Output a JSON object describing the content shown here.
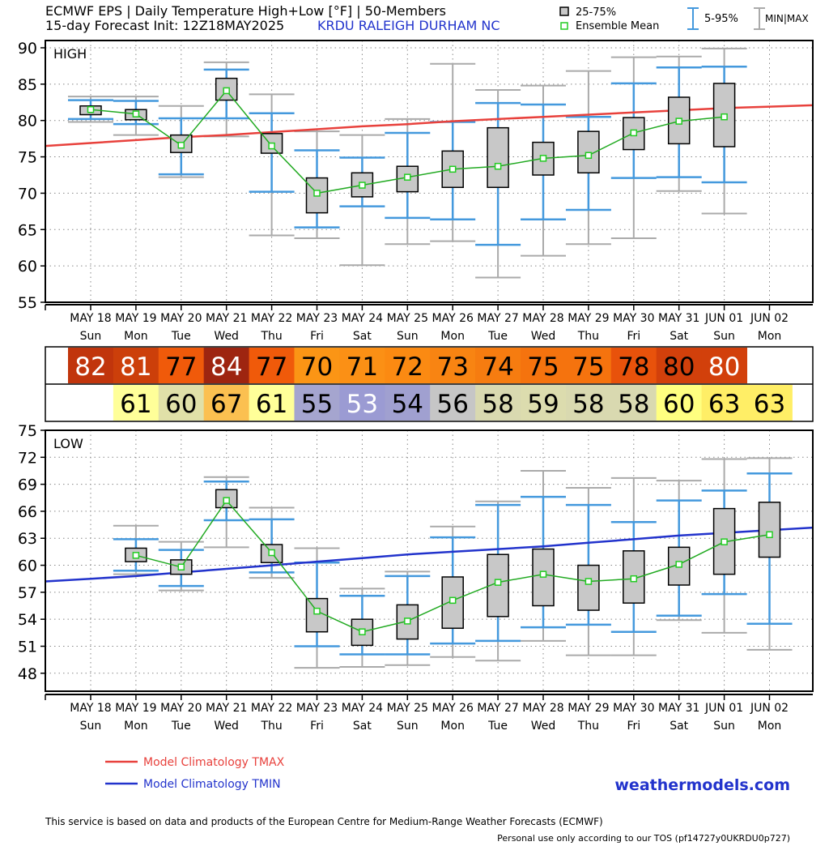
{
  "header": {
    "title_line1": "ECMWF EPS | Daily Temperature High+Low [°F] | 50-Members",
    "title_line2": "15-day Forecast Init: 12Z18MAY2025",
    "station": "KRDU  RALEIGH DURHAM  NC",
    "legend_box": "25-75%",
    "legend_mean": "Ensemble Mean",
    "legend_5_95": "5-95%",
    "legend_minmax": "MIN|MAX"
  },
  "footer": {
    "tmax_label": "Model Climatology TMAX",
    "tmin_label": "Model Climatology TMIN",
    "site": "weathermodels.com",
    "disclaimer": "This service is based on data and products of the European Centre for Medium-Range Weather Forecasts (ECMWF)",
    "tos": "Personal use only according to our TOS (pf14727y0UKRDU0p727)"
  },
  "days": {
    "dates": [
      "MAY 18",
      "MAY 19",
      "MAY 20",
      "MAY 21",
      "MAY 22",
      "MAY 23",
      "MAY 24",
      "MAY 25",
      "MAY 26",
      "MAY 27",
      "MAY 28",
      "MAY 29",
      "MAY 30",
      "MAY 31",
      "JUN 01",
      "JUN 02"
    ],
    "weekdays": [
      "Sun",
      "Mon",
      "Tue",
      "Wed",
      "Thu",
      "Fri",
      "Sat",
      "Sun",
      "Mon",
      "Tue",
      "Wed",
      "Thu",
      "Fri",
      "Sat",
      "Sun",
      "Mon"
    ]
  },
  "colors": {
    "tmax_line": "#e8413c",
    "tmin_line": "#2233cc",
    "mean_line": "#22aa22",
    "whisker_5_95": "#4499dd",
    "whisker_minmax": "#aaaaaa",
    "box_fill": "#c8c8c8",
    "site_text": "#2233cc",
    "station_text": "#2233cc"
  },
  "summary": {
    "highs": [
      {
        "value": "82",
        "bg": "#c1350c",
        "fg": "#ffffff"
      },
      {
        "value": "81",
        "bg": "#cc3f0a",
        "fg": "#ffffff"
      },
      {
        "value": "77",
        "bg": "#f05a0a",
        "fg": "#000000"
      },
      {
        "value": "84",
        "bg": "#9e2510",
        "fg": "#ffffff"
      },
      {
        "value": "77",
        "bg": "#f05a0a",
        "fg": "#000000"
      },
      {
        "value": "70",
        "bg": "#fb9515",
        "fg": "#000000"
      },
      {
        "value": "71",
        "bg": "#fb9015",
        "fg": "#000000"
      },
      {
        "value": "72",
        "bg": "#fb8a12",
        "fg": "#000000"
      },
      {
        "value": "73",
        "bg": "#f88412",
        "fg": "#000000"
      },
      {
        "value": "74",
        "bg": "#f67c10",
        "fg": "#000000"
      },
      {
        "value": "75",
        "bg": "#f5730e",
        "fg": "#000000"
      },
      {
        "value": "75",
        "bg": "#f5730e",
        "fg": "#000000"
      },
      {
        "value": "78",
        "bg": "#e8520b",
        "fg": "#000000"
      },
      {
        "value": "80",
        "bg": "#d2400b",
        "fg": "#000000"
      },
      {
        "value": "80",
        "bg": "#d2400b",
        "fg": "#ffffff"
      }
    ],
    "lows": [
      {
        "value": "61",
        "bg": "#ffff99",
        "fg": "#000000"
      },
      {
        "value": "60",
        "bg": "#e0e0a8",
        "fg": "#000000"
      },
      {
        "value": "67",
        "bg": "#fbc050",
        "fg": "#000000"
      },
      {
        "value": "61",
        "bg": "#ffff99",
        "fg": "#000000"
      },
      {
        "value": "55",
        "bg": "#a5a5cf",
        "fg": "#000000"
      },
      {
        "value": "53",
        "bg": "#9b9bd3",
        "fg": "#ffffff"
      },
      {
        "value": "54",
        "bg": "#a0a0d0",
        "fg": "#000000"
      },
      {
        "value": "56",
        "bg": "#c6c6c6",
        "fg": "#000000"
      },
      {
        "value": "58",
        "bg": "#d9d9b0",
        "fg": "#000000"
      },
      {
        "value": "59",
        "bg": "#dcdcae",
        "fg": "#000000"
      },
      {
        "value": "58",
        "bg": "#d9d9b0",
        "fg": "#000000"
      },
      {
        "value": "58",
        "bg": "#d9d9b0",
        "fg": "#000000"
      },
      {
        "value": "60",
        "bg": "#ffff80",
        "fg": "#000000"
      },
      {
        "value": "63",
        "bg": "#ffee66",
        "fg": "#000000"
      },
      {
        "value": "63",
        "bg": "#ffee66",
        "fg": "#000000"
      }
    ]
  },
  "chart_data": [
    {
      "type": "box",
      "title": "HIGH",
      "ylim": [
        55,
        91
      ],
      "yticks": [
        55,
        60,
        65,
        70,
        75,
        80,
        85,
        90
      ],
      "categories": [
        "MAY 18",
        "MAY 19",
        "MAY 20",
        "MAY 21",
        "MAY 22",
        "MAY 23",
        "MAY 24",
        "MAY 25",
        "MAY 26",
        "MAY 27",
        "MAY 28",
        "MAY 29",
        "MAY 30",
        "MAY 31",
        "JUN 01",
        "JUN 02"
      ],
      "series": [
        {
          "name": "min",
          "values": [
            79.8,
            78.0,
            72.2,
            77.8,
            64.2,
            63.8,
            60.1,
            63.0,
            63.4,
            58.4,
            61.4,
            63.0,
            63.8,
            70.3,
            67.2,
            null
          ]
        },
        {
          "name": "p5",
          "values": [
            80.2,
            79.5,
            72.6,
            80.3,
            70.2,
            65.3,
            68.2,
            66.6,
            66.4,
            62.9,
            66.4,
            67.7,
            72.1,
            72.2,
            71.5,
            null
          ]
        },
        {
          "name": "p25",
          "values": [
            80.8,
            80.1,
            75.6,
            82.8,
            75.5,
            67.3,
            69.5,
            70.2,
            70.8,
            70.8,
            72.5,
            72.8,
            76.0,
            76.8,
            76.4,
            null
          ]
        },
        {
          "name": "p75",
          "values": [
            82.0,
            81.5,
            78.0,
            85.8,
            78.2,
            72.1,
            72.8,
            73.7,
            75.8,
            79.0,
            77.0,
            78.5,
            80.4,
            83.2,
            85.1,
            null
          ]
        },
        {
          "name": "p95",
          "values": [
            82.8,
            82.7,
            80.3,
            87.0,
            81.0,
            75.9,
            74.9,
            78.3,
            79.8,
            82.4,
            82.2,
            80.5,
            85.1,
            87.3,
            87.4,
            null
          ]
        },
        {
          "name": "max",
          "values": [
            83.3,
            83.3,
            82.0,
            88.0,
            83.6,
            78.5,
            78.0,
            80.2,
            87.8,
            84.2,
            84.8,
            86.8,
            88.7,
            88.8,
            89.9,
            null
          ]
        },
        {
          "name": "Ensemble Mean",
          "values": [
            81.5,
            80.9,
            76.6,
            84.1,
            76.5,
            70.0,
            71.1,
            72.2,
            73.3,
            73.7,
            74.8,
            75.2,
            78.3,
            79.9,
            80.5,
            null
          ]
        },
        {
          "name": "Model Climatology TMAX",
          "values": [
            76.9,
            77.3,
            77.7,
            78.0,
            78.4,
            78.8,
            79.2,
            79.5,
            79.9,
            80.2,
            80.5,
            80.8,
            81.1,
            81.4,
            81.7,
            81.9
          ]
        }
      ],
      "legend": [
        "25-75%",
        "Ensemble Mean",
        "5-95%",
        "MIN|MAX",
        "Model Climatology TMAX"
      ]
    },
    {
      "type": "box",
      "title": "LOW",
      "ylim": [
        46,
        75
      ],
      "yticks": [
        48,
        51,
        54,
        57,
        60,
        63,
        66,
        69,
        72,
        75
      ],
      "categories": [
        "MAY 18",
        "MAY 19",
        "MAY 20",
        "MAY 21",
        "MAY 22",
        "MAY 23",
        "MAY 24",
        "MAY 25",
        "MAY 26",
        "MAY 27",
        "MAY 28",
        "MAY 29",
        "MAY 30",
        "MAY 31",
        "JUN 01",
        "JUN 02"
      ],
      "series": [
        {
          "name": "min",
          "values": [
            null,
            59.0,
            57.2,
            62.0,
            58.6,
            48.6,
            48.7,
            48.9,
            49.8,
            49.4,
            51.6,
            50.0,
            50.0,
            53.9,
            52.5,
            50.6
          ]
        },
        {
          "name": "p5",
          "values": [
            null,
            59.4,
            57.7,
            65.0,
            59.2,
            51.0,
            50.1,
            50.1,
            51.3,
            51.6,
            53.1,
            53.4,
            52.6,
            54.4,
            56.8,
            53.5
          ]
        },
        {
          "name": "p25",
          "values": [
            null,
            60.4,
            59.0,
            66.4,
            60.3,
            52.6,
            51.1,
            51.8,
            53.0,
            54.3,
            55.5,
            55.0,
            55.8,
            57.8,
            59.0,
            60.9
          ]
        },
        {
          "name": "p75",
          "values": [
            null,
            61.9,
            60.6,
            68.4,
            62.3,
            56.3,
            54.0,
            55.6,
            58.7,
            61.2,
            61.8,
            60.0,
            61.6,
            62.0,
            66.3,
            67.0
          ]
        },
        {
          "name": "p95",
          "values": [
            null,
            62.9,
            61.7,
            69.3,
            65.1,
            60.3,
            56.6,
            58.8,
            63.1,
            66.7,
            67.6,
            66.7,
            64.8,
            67.2,
            68.3,
            70.2
          ]
        },
        {
          "name": "max",
          "values": [
            null,
            64.4,
            62.6,
            69.8,
            66.4,
            61.9,
            57.4,
            59.3,
            64.3,
            67.1,
            70.5,
            68.6,
            69.7,
            69.4,
            71.8,
            71.9
          ]
        },
        {
          "name": "Ensemble Mean",
          "values": [
            null,
            61.1,
            59.8,
            67.2,
            61.4,
            54.9,
            52.6,
            53.8,
            56.1,
            58.1,
            59.0,
            58.2,
            58.5,
            60.1,
            62.6,
            63.4
          ]
        },
        {
          "name": "Model Climatology TMIN",
          "values": [
            58.5,
            58.8,
            59.2,
            59.6,
            60.0,
            60.4,
            60.8,
            61.2,
            61.5,
            61.8,
            62.1,
            62.5,
            62.9,
            63.3,
            63.6,
            63.9
          ]
        }
      ],
      "legend": [
        "Model Climatology TMIN"
      ]
    }
  ]
}
